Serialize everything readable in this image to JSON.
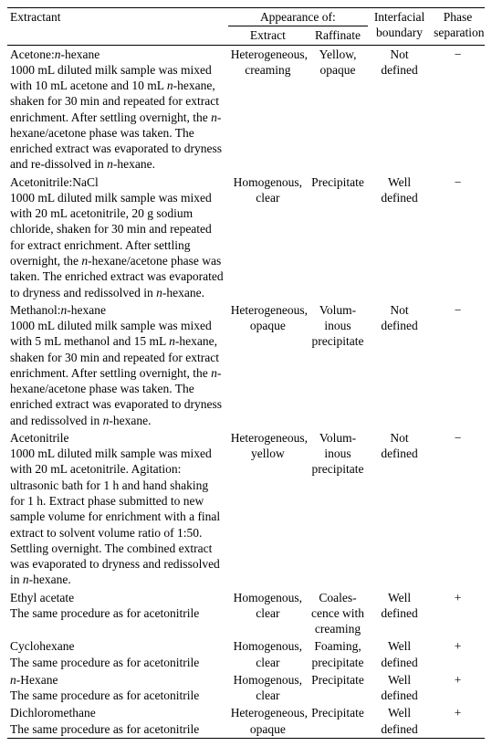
{
  "header": {
    "extractant": "Extractant",
    "appearance": "Appearance of:",
    "extract": "Extract",
    "raffinate": "Raffinate",
    "boundary": "Interfacial boundary",
    "phase": "Phase separation"
  },
  "rows": [
    {
      "title_parts": [
        "Acetone:",
        "n",
        "-hexane"
      ],
      "desc_parts": [
        "1000 mL diluted milk sample was mixed with 10 mL acetone and 10 mL ",
        "n",
        "-hexane, shaken for 30 min and repeated for extract enrichment. After settling overnight, the ",
        "n",
        "-hexane/acetone phase was taken. The enriched extract was evaporated to dryness and re-dissolved in ",
        "n",
        "-hexane."
      ],
      "extract": "Heterogeneous, creaming",
      "raffinate": "Yellow, opaque",
      "boundary": "Not defined",
      "phase": "−"
    },
    {
      "title_parts": [
        "Acetonitrile:NaCl"
      ],
      "desc_parts": [
        "1000 mL diluted milk sample was mixed with 20 mL acetonitrile, 20 g sodium chloride, shaken for 30 min and repeated for extract enrichment. After settling overnight, the ",
        "n",
        "-hexane/acetone phase was taken. The enriched extract was evaporated to dryness and redissolved in ",
        "n",
        "-hexane."
      ],
      "extract": "Homogenous, clear",
      "raffinate": "Preci­pitate",
      "boundary": "Well defined",
      "phase": "−"
    },
    {
      "title_parts": [
        "Methanol:",
        "n",
        "-hexane"
      ],
      "desc_parts": [
        "1000 mL diluted milk sample was mixed with 5 mL methanol and 15 mL ",
        "n",
        "-hexane, shaken for 30 min and repeated for extract enrichment. After settling overnight, the ",
        "n",
        "-hexane/acetone phase was taken. The enriched extract was evaporated to dryness and redissolved in ",
        "n",
        "-hexane."
      ],
      "extract": "Heterogeneous, opaque",
      "raffinate": "Volum­inous precipitate",
      "boundary": "Not defined",
      "phase": "−"
    },
    {
      "title_parts": [
        "Acetonitrile"
      ],
      "desc_parts": [
        "1000 mL diluted milk sample was mixed with 20 mL acetonitrile. Agitation: ultrasonic bath for 1 h and hand shaking for 1 h. Extract phase submitted to new sample volume for enrichment with a final extract to solvent volume ratio of 1:50. Settling overnight. The combined extract was evaporated to dryness and redissolved in ",
        "n",
        "-hexane."
      ],
      "extract": "Heterogeneous, yellow",
      "raffinate": "Volum­inous precipitate",
      "boundary": "Not defined",
      "phase": "−"
    },
    {
      "title_parts": [
        "Ethyl acetate"
      ],
      "desc_parts": [
        "The same procedure as for acetonitrile"
      ],
      "extract": "Homogenous, clear",
      "raffinate": "Coales­cence with creaming",
      "boundary": "Well defined",
      "phase": "+"
    },
    {
      "title_parts": [
        "Cyclohexane"
      ],
      "desc_parts": [
        "The same procedure as for acetonitrile"
      ],
      "extract": "Homogenous, clear",
      "raffinate": "Foaming, precipitate",
      "boundary": "Well defined",
      "phase": "+"
    },
    {
      "title_parts": [
        "",
        "n",
        "-Hexane"
      ],
      "desc_parts": [
        "The same procedure as for acetonitrile"
      ],
      "extract": "Homogenous, clear",
      "raffinate": "Preci­pitate",
      "boundary": "Well defined",
      "phase": "+"
    },
    {
      "title_parts": [
        "Dichloromethane"
      ],
      "desc_parts": [
        "The same procedure as for acetonitrile"
      ],
      "extract": "Heterogeneous, opaque",
      "raffinate": "Preci­pitate",
      "boundary": "Well defined",
      "phase": "+"
    }
  ]
}
